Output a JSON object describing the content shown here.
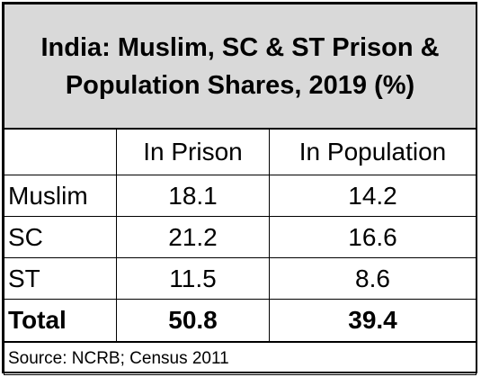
{
  "chart_data": {
    "type": "table",
    "title_line1": "India: Muslim, SC & ST Prison &",
    "title_line2": "Population Shares, 2019 (%)",
    "columns": [
      "",
      "In Prison",
      "In Population"
    ],
    "rows": [
      {
        "label": "Muslim",
        "in_prison": "18.1",
        "in_population": "14.2"
      },
      {
        "label": "SC",
        "in_prison": "21.2",
        "in_population": "16.6"
      },
      {
        "label": "ST",
        "in_prison": "11.5",
        "in_population": "8.6"
      }
    ],
    "total": {
      "label": "Total",
      "in_prison": "50.8",
      "in_population": "39.4"
    },
    "source": "Source: NCRB; Census 2011"
  }
}
